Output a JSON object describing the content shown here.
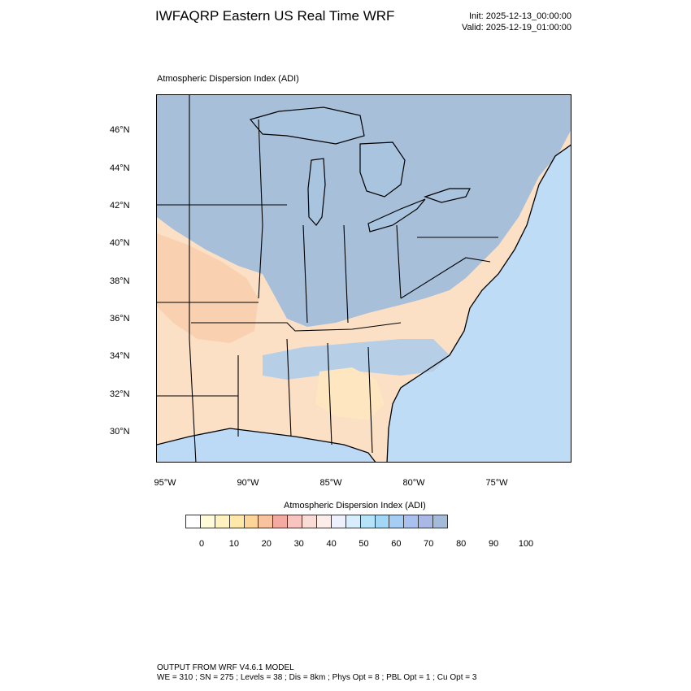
{
  "title": "IWFAQRP Eastern US Real Time WRF",
  "init_label": "Init: 2025-12-13_00:00:00",
  "valid_label": "Valid: 2025-12-19_01:00:00",
  "panel_title": "Atmospheric Dispersion Index   (ADI)",
  "legend": {
    "title": "Atmospheric Dispersion Index  (ADI)",
    "ticks": [
      "0",
      "10",
      "20",
      "30",
      "40",
      "50",
      "60",
      "70",
      "80",
      "90",
      "100"
    ],
    "colors": [
      "#ffffff",
      "#fffbd9",
      "#fff2c0",
      "#ffe8a8",
      "#fdd59a",
      "#f9c3a0",
      "#f4aaa0",
      "#f7c4c0",
      "#fadcd6",
      "#fcecea",
      "#eef0fc",
      "#d9eefc",
      "#b7e3f9",
      "#a2d8f6",
      "#a6cdf3",
      "#a8c1ee",
      "#a9b8e4",
      "#a5bcd8"
    ]
  },
  "map": {
    "lat_labels": [
      "46°N",
      "44°N",
      "42°N",
      "40°N",
      "38°N",
      "36°N",
      "34°N",
      "32°N",
      "30°N"
    ],
    "lon_labels": [
      "95°W",
      "90°W",
      "85°W",
      "80°W",
      "75°W"
    ],
    "colors": {
      "high_adi": "#a7bfd9",
      "water": "#a8c4df",
      "ocean": "#bfdcf7",
      "mid_adi": "#fbe0c6",
      "low_adi": "#f9d0b0",
      "border": "#000000"
    }
  },
  "footer": {
    "line1": "OUTPUT FROM WRF V4.6.1 MODEL",
    "line2": "WE = 310 ; SN = 275 ; Levels = 38 ; Dis = 8km ; Phys Opt = 8 ; PBL Opt = 1 ; Cu Opt = 3"
  }
}
